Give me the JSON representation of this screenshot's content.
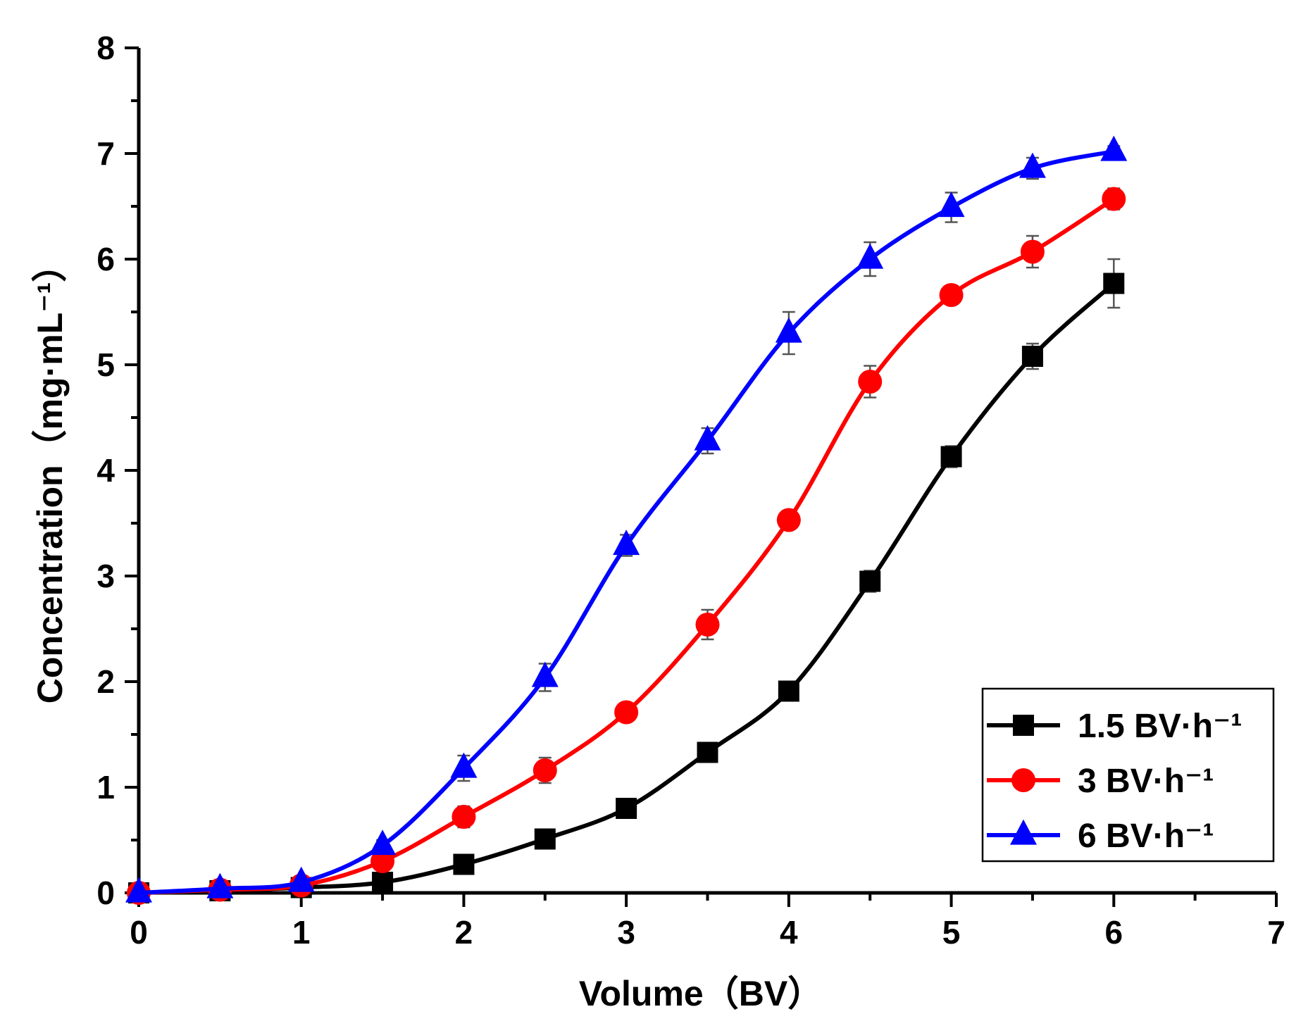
{
  "chart_data": {
    "type": "line",
    "title": "",
    "xlabel": "Volume（BV）",
    "ylabel": "Concentration（mg·mL⁻¹）",
    "xlim": [
      0,
      7
    ],
    "ylim": [
      0,
      8
    ],
    "xticks": [
      "0",
      "1",
      "2",
      "3",
      "4",
      "5",
      "6",
      "7"
    ],
    "yticks": [
      "0",
      "1",
      "2",
      "3",
      "4",
      "5",
      "6",
      "7",
      "8"
    ],
    "grid": false,
    "legend_position": "bottom-right",
    "x": [
      0,
      0.5,
      1,
      1.5,
      2,
      2.5,
      3,
      3.5,
      4,
      4.5,
      5,
      5.5,
      6
    ],
    "series": [
      {
        "name": "1.5 BV·h⁻¹",
        "color": "#000000",
        "marker": "square",
        "values": [
          0.0,
          0.02,
          0.05,
          0.1,
          0.27,
          0.51,
          0.8,
          1.33,
          1.91,
          2.95,
          4.13,
          5.08,
          5.77
        ],
        "errors": [
          0.0,
          0.01,
          0.02,
          0.03,
          0.04,
          0.05,
          0.06,
          0.08,
          0.08,
          0.1,
          0.1,
          0.12,
          0.23
        ]
      },
      {
        "name": "3 BV·h⁻¹",
        "color": "#ff0000",
        "marker": "circle",
        "values": [
          0.0,
          0.03,
          0.07,
          0.3,
          0.72,
          1.16,
          1.71,
          2.54,
          3.53,
          4.84,
          5.66,
          6.07,
          6.57
        ],
        "errors": [
          0.0,
          0.01,
          0.02,
          0.04,
          0.1,
          0.12,
          0.06,
          0.14,
          0.08,
          0.15,
          0.05,
          0.15,
          0.1
        ]
      },
      {
        "name": "6 BV·h⁻¹",
        "color": "#0000ff",
        "marker": "triangle",
        "values": [
          0.0,
          0.04,
          0.1,
          0.45,
          1.18,
          2.04,
          3.29,
          4.28,
          5.3,
          6.0,
          6.49,
          6.86,
          7.02
        ],
        "errors": [
          0.0,
          0.01,
          0.02,
          0.05,
          0.12,
          0.13,
          0.1,
          0.12,
          0.2,
          0.16,
          0.14,
          0.1,
          0.05
        ]
      }
    ]
  }
}
